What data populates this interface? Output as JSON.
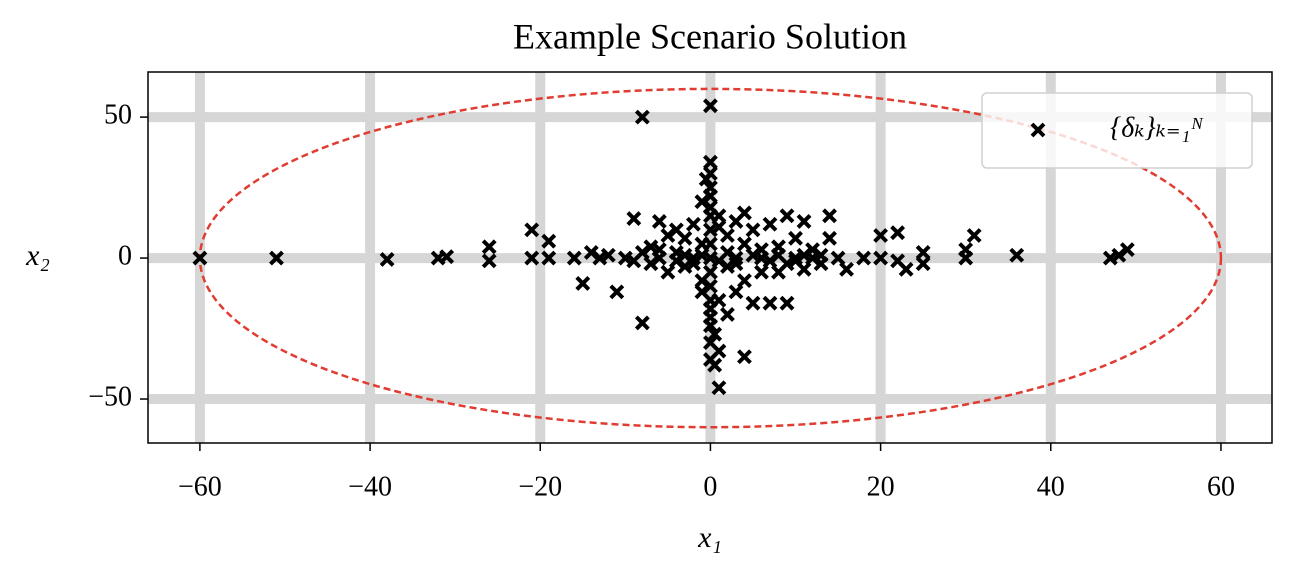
{
  "chart_data": {
    "type": "scatter",
    "title": "Example Scenario Solution",
    "x_label": "x₁",
    "y_label": "x₂",
    "xlim": [
      -66.1,
      66.0
    ],
    "ylim": [
      -65.6,
      66.0
    ],
    "xticks": [
      {
        "value": -60,
        "label": "−60"
      },
      {
        "value": -40,
        "label": "−40"
      },
      {
        "value": -20,
        "label": "−20"
      },
      0,
      20,
      40,
      60
    ],
    "yticks": [
      {
        "value": -50,
        "label": "−50"
      },
      0,
      50
    ],
    "grid": true,
    "legend": "upper right",
    "ellipse": {
      "center": [
        0,
        0
      ],
      "radii": [
        60,
        60
      ],
      "color": "#e03c31"
    },
    "series": [
      {
        "name": "{δₖ}ₖ₌₁ᴺ",
        "color": "#000000",
        "x": [
          -60,
          -51,
          -38,
          -32,
          -31,
          -26,
          -26,
          -21,
          -21,
          -19,
          -19,
          -16,
          -15,
          -14,
          -13,
          -11,
          -10,
          -9,
          -8,
          -8,
          0,
          -7,
          -6,
          -6,
          -5,
          -5,
          -4,
          -4,
          -3,
          -3,
          -2,
          -2,
          -1,
          -1,
          -1,
          0,
          0,
          0,
          0,
          0,
          0,
          0,
          0,
          0,
          0,
          0,
          0,
          0,
          0.5,
          1,
          1,
          1,
          1,
          2,
          2,
          2,
          3,
          3,
          3,
          4,
          4,
          4,
          4,
          5,
          5,
          6,
          6,
          7,
          7,
          8,
          8,
          9,
          9,
          10,
          10,
          11,
          11,
          12,
          12,
          13,
          14,
          14,
          15,
          16,
          18,
          20,
          20,
          22,
          22,
          23,
          25,
          25,
          30,
          30,
          31,
          36,
          47,
          48,
          49,
          -12,
          -9,
          -8,
          -7,
          -6,
          -4,
          -3,
          -2,
          -1,
          1,
          2,
          3,
          5,
          6,
          7,
          8,
          9,
          10,
          11,
          13,
          0,
          0,
          0,
          0,
          -0.5,
          0.5,
          -1,
          1
        ],
        "y": [
          0,
          0,
          -0.5,
          0,
          0.5,
          4,
          -1,
          10,
          0,
          6,
          0,
          0,
          -9,
          2,
          0,
          -12,
          0,
          14,
          -23,
          50,
          54,
          4,
          13,
          0,
          8,
          -5,
          10,
          2,
          -3,
          7,
          12,
          0,
          20,
          5,
          -8,
          34,
          30,
          25,
          18,
          10,
          5,
          0,
          -5,
          -10,
          -18,
          -24,
          -30,
          -36,
          -38,
          -33,
          -46,
          15,
          -15,
          8,
          -3,
          -20,
          0,
          13,
          -12,
          16,
          -35,
          5,
          -8,
          -16,
          10,
          0,
          -5,
          12,
          -16,
          4,
          -5,
          -16,
          15,
          0,
          7,
          13,
          -4,
          3,
          0,
          -2,
          15,
          7,
          0,
          -4,
          0,
          8,
          0,
          9,
          -1,
          -4,
          2,
          -2,
          0,
          3,
          8,
          1,
          0,
          1,
          3,
          1,
          -1,
          2,
          -2,
          3,
          -1,
          1,
          -2,
          1,
          -1,
          2,
          -2,
          1,
          3,
          -1,
          1,
          -2,
          -1,
          1,
          1,
          15,
          -15,
          22,
          -21,
          28,
          -27,
          -12,
          11
        ]
      }
    ]
  }
}
